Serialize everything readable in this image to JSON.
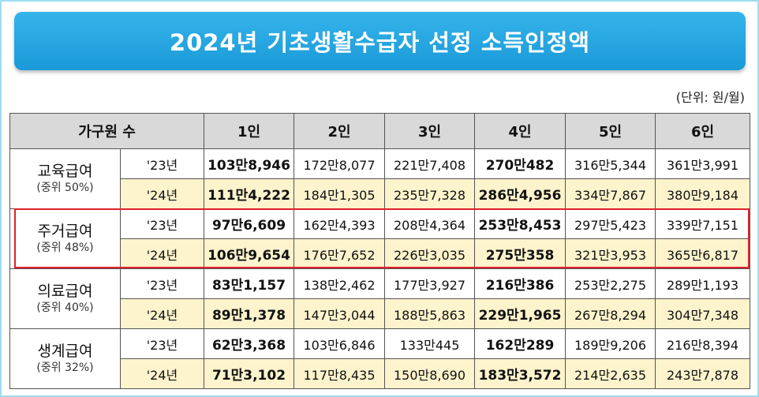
{
  "header": {
    "title": "2024년 기초생활수급자 선정 소득인정액",
    "unit": "(단위: 원/월)"
  },
  "table": {
    "columns": [
      "가구원 수",
      "1인",
      "2인",
      "3인",
      "4인",
      "5인",
      "6인"
    ],
    "groups": [
      {
        "name": "교육급여",
        "sub": "(중위 50%)",
        "rows": [
          {
            "year": "'23년",
            "values": [
              "103만8,946",
              "172만8,077",
              "221만7,408",
              "270만482",
              "316만5,344",
              "361만3,991"
            ]
          },
          {
            "year": "'24년",
            "values": [
              "111만4,222",
              "184만1,305",
              "235만7,328",
              "286만4,956",
              "334만7,867",
              "380만9,184"
            ]
          }
        ]
      },
      {
        "name": "주거급여",
        "sub": "(중위 48%)",
        "rows": [
          {
            "year": "'23년",
            "values": [
              "97만6,609",
              "162만4,393",
              "208만4,364",
              "253만8,453",
              "297만5,423",
              "339만7,151"
            ]
          },
          {
            "year": "'24년",
            "values": [
              "106만9,654",
              "176만7,652",
              "226만3,035",
              "275만358",
              "321만3,953",
              "365만6,817"
            ]
          }
        ]
      },
      {
        "name": "의료급여",
        "sub": "(중위 40%)",
        "rows": [
          {
            "year": "'23년",
            "values": [
              "83만1,157",
              "138만2,462",
              "177만3,927",
              "216만386",
              "253만2,275",
              "289만1,193"
            ]
          },
          {
            "year": "'24년",
            "values": [
              "89만1,378",
              "147만3,044",
              "188만5,863",
              "229만1,965",
              "267만8,294",
              "304만7,348"
            ]
          }
        ]
      },
      {
        "name": "생계급여",
        "sub": "(중위 32%)",
        "rows": [
          {
            "year": "'23년",
            "values": [
              "62만3,368",
              "103만6,846",
              "133만445",
              "162만289",
              "189만9,206",
              "216만8,394"
            ]
          },
          {
            "year": "'24년",
            "values": [
              "71만3,102",
              "117만8,435",
              "150만8,690",
              "183만3,572",
              "214만2,635",
              "243만7,878"
            ]
          }
        ]
      }
    ]
  }
}
